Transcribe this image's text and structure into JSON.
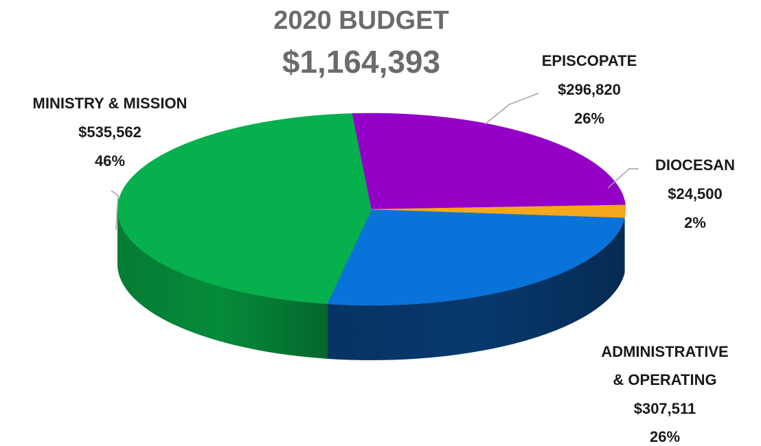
{
  "chart_data": {
    "type": "pie",
    "title": "2020 BUDGET",
    "subtitle": "$1,164,393",
    "slices": [
      {
        "name": "ADMINISTRATIVE & OPERATING",
        "amount": "$307,511",
        "percent_label": "26%",
        "value": 307511,
        "color": "#0a73d9",
        "side_color": "#07396e"
      },
      {
        "name": "MINISTRY & MISSION",
        "amount": "$535,562",
        "percent_label": "46%",
        "value": 535562,
        "color": "#06b04c",
        "side_color": "#058a3a"
      },
      {
        "name": "EPISCOPATE",
        "amount": "$296,820",
        "percent_label": "26%",
        "value": 296820,
        "color": "#9400c7",
        "side_color": "#6a008f"
      },
      {
        "name": "DIOCESAN",
        "amount": "$24,500",
        "percent_label": "2%",
        "value": 24500,
        "color": "#f5a81c",
        "side_color": "#b57800"
      }
    ],
    "legend": "none",
    "labels": "outside with leader lines"
  },
  "labels": {
    "ministry": {
      "line1": "MINISTRY & MISSION",
      "amount": "$535,562",
      "pct": "46%"
    },
    "episcopate": {
      "line1": "EPISCOPATE",
      "amount": "$296,820",
      "pct": "26%"
    },
    "diocesan": {
      "line1": "DIOCESAN",
      "amount": "$24,500",
      "pct": "2%"
    },
    "admin": {
      "line1": "ADMINISTRATIVE",
      "line2": "& OPERATING",
      "amount": "$307,511",
      "pct": "26%"
    }
  }
}
